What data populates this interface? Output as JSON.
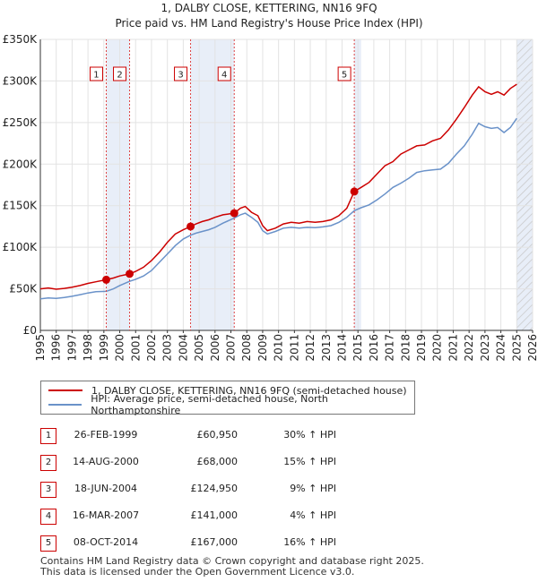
{
  "header": {
    "title": "1, DALBY CLOSE, KETTERING, NN16 9FQ",
    "subtitle": "Price paid vs. HM Land Registry's House Price Index (HPI)"
  },
  "chart_data": {
    "type": "line",
    "title": "1, DALBY CLOSE, KETTERING, NN16 9FQ",
    "subtitle": "Price paid vs. HM Land Registry's House Price Index (HPI)",
    "xlim": [
      1995,
      2026
    ],
    "ylim": [
      0,
      350000
    ],
    "x_ticks": [
      1995,
      1996,
      1997,
      1998,
      1999,
      2000,
      2001,
      2002,
      2003,
      2004,
      2005,
      2006,
      2007,
      2008,
      2009,
      2010,
      2011,
      2012,
      2013,
      2014,
      2015,
      2016,
      2017,
      2018,
      2019,
      2020,
      2021,
      2022,
      2023,
      2024,
      2025,
      2026
    ],
    "y_ticks": [
      {
        "value": 0,
        "label": "£0"
      },
      {
        "value": 50000,
        "label": "£50K"
      },
      {
        "value": 100000,
        "label": "£100K"
      },
      {
        "value": 150000,
        "label": "£150K"
      },
      {
        "value": 200000,
        "label": "£200K"
      },
      {
        "value": 250000,
        "label": "£250K"
      },
      {
        "value": 300000,
        "label": "£300K"
      },
      {
        "value": 350000,
        "label": "£350K"
      }
    ],
    "grid": true,
    "shaded_periods": [
      [
        1999.15,
        2000.62
      ],
      [
        2004.46,
        2007.21
      ],
      [
        2014.77,
        2015.2
      ],
      [
        2025.0,
        2026.0
      ]
    ],
    "series": [
      {
        "name": "1, DALBY CLOSE, KETTERING, NN16 9FQ (semi-detached house)",
        "color": "#cc0000",
        "points": [
          [
            1995.0,
            50000
          ],
          [
            1995.5,
            51000
          ],
          [
            1996.0,
            49500
          ],
          [
            1996.5,
            50500
          ],
          [
            1997.0,
            52000
          ],
          [
            1997.5,
            54000
          ],
          [
            1998.0,
            56500
          ],
          [
            1998.5,
            58500
          ],
          [
            1999.15,
            60950
          ],
          [
            1999.6,
            63000
          ],
          [
            2000.0,
            65500
          ],
          [
            2000.62,
            68000
          ],
          [
            2001.0,
            71000
          ],
          [
            2001.5,
            76000
          ],
          [
            2002.0,
            84000
          ],
          [
            2002.5,
            94000
          ],
          [
            2003.0,
            106000
          ],
          [
            2003.5,
            116000
          ],
          [
            2004.0,
            121000
          ],
          [
            2004.46,
            124950
          ],
          [
            2004.8,
            128000
          ],
          [
            2005.2,
            131000
          ],
          [
            2005.6,
            133000
          ],
          [
            2006.0,
            136000
          ],
          [
            2006.5,
            139000
          ],
          [
            2007.21,
            141000
          ],
          [
            2007.6,
            147000
          ],
          [
            2007.9,
            149000
          ],
          [
            2008.3,
            142000
          ],
          [
            2008.7,
            138000
          ],
          [
            2009.0,
            126000
          ],
          [
            2009.3,
            120000
          ],
          [
            2009.8,
            123000
          ],
          [
            2010.3,
            128000
          ],
          [
            2010.8,
            130000
          ],
          [
            2011.3,
            129000
          ],
          [
            2011.8,
            131000
          ],
          [
            2012.3,
            130000
          ],
          [
            2012.8,
            131000
          ],
          [
            2013.3,
            133000
          ],
          [
            2013.8,
            138000
          ],
          [
            2014.3,
            147000
          ],
          [
            2014.77,
            167000
          ],
          [
            2015.2,
            172000
          ],
          [
            2015.7,
            178000
          ],
          [
            2016.2,
            188000
          ],
          [
            2016.7,
            198000
          ],
          [
            2017.2,
            203000
          ],
          [
            2017.7,
            212000
          ],
          [
            2018.2,
            217000
          ],
          [
            2018.7,
            222000
          ],
          [
            2019.2,
            223000
          ],
          [
            2019.7,
            228000
          ],
          [
            2020.2,
            231000
          ],
          [
            2020.7,
            241000
          ],
          [
            2021.2,
            254000
          ],
          [
            2021.7,
            268000
          ],
          [
            2022.2,
            283000
          ],
          [
            2022.6,
            293000
          ],
          [
            2023.0,
            287000
          ],
          [
            2023.4,
            284000
          ],
          [
            2023.8,
            287000
          ],
          [
            2024.2,
            283000
          ],
          [
            2024.6,
            291000
          ],
          [
            2025.0,
            296000
          ]
        ]
      },
      {
        "name": "HPI: Average price, semi-detached house, North Northamptonshire",
        "color": "#6a92c9",
        "points": [
          [
            1995.0,
            38000
          ],
          [
            1995.5,
            39000
          ],
          [
            1996.0,
            38500
          ],
          [
            1996.5,
            39500
          ],
          [
            1997.0,
            41000
          ],
          [
            1997.5,
            43000
          ],
          [
            1998.0,
            45000
          ],
          [
            1998.5,
            46500
          ],
          [
            1999.15,
            47000
          ],
          [
            1999.6,
            50000
          ],
          [
            2000.0,
            54000
          ],
          [
            2000.62,
            59000
          ],
          [
            2001.0,
            61500
          ],
          [
            2001.5,
            65500
          ],
          [
            2002.0,
            72000
          ],
          [
            2002.5,
            82000
          ],
          [
            2003.0,
            92000
          ],
          [
            2003.5,
            102000
          ],
          [
            2004.0,
            110000
          ],
          [
            2004.46,
            114500
          ],
          [
            2004.8,
            117000
          ],
          [
            2005.2,
            119000
          ],
          [
            2005.6,
            121000
          ],
          [
            2006.0,
            124000
          ],
          [
            2006.5,
            129000
          ],
          [
            2007.21,
            135000
          ],
          [
            2007.6,
            139000
          ],
          [
            2007.9,
            141000
          ],
          [
            2008.3,
            136000
          ],
          [
            2008.7,
            130000
          ],
          [
            2009.0,
            120000
          ],
          [
            2009.3,
            116000
          ],
          [
            2009.8,
            119000
          ],
          [
            2010.3,
            123000
          ],
          [
            2010.8,
            124000
          ],
          [
            2011.3,
            123000
          ],
          [
            2011.8,
            124000
          ],
          [
            2012.3,
            123500
          ],
          [
            2012.8,
            124500
          ],
          [
            2013.3,
            126000
          ],
          [
            2013.8,
            130000
          ],
          [
            2014.3,
            136000
          ],
          [
            2014.77,
            144000
          ],
          [
            2015.2,
            147500
          ],
          [
            2015.7,
            151000
          ],
          [
            2016.2,
            157000
          ],
          [
            2016.7,
            164000
          ],
          [
            2017.2,
            172000
          ],
          [
            2017.7,
            177000
          ],
          [
            2018.2,
            183000
          ],
          [
            2018.7,
            190000
          ],
          [
            2019.2,
            192000
          ],
          [
            2019.7,
            193000
          ],
          [
            2020.2,
            194000
          ],
          [
            2020.7,
            201000
          ],
          [
            2021.2,
            212000
          ],
          [
            2021.7,
            222000
          ],
          [
            2022.2,
            236000
          ],
          [
            2022.6,
            249000
          ],
          [
            2023.0,
            245000
          ],
          [
            2023.4,
            243000
          ],
          [
            2023.8,
            244000
          ],
          [
            2024.2,
            238000
          ],
          [
            2024.6,
            244000
          ],
          [
            2025.0,
            255000
          ]
        ]
      }
    ],
    "transactions": [
      {
        "label": "1",
        "x": 1999.15,
        "y": 60950
      },
      {
        "label": "2",
        "x": 2000.62,
        "y": 68000
      },
      {
        "label": "3",
        "x": 2004.46,
        "y": 124950
      },
      {
        "label": "4",
        "x": 2007.21,
        "y": 141000
      },
      {
        "label": "5",
        "x": 2014.77,
        "y": 167000
      }
    ]
  },
  "legend": {
    "property": "1, DALBY CLOSE, KETTERING, NN16 9FQ (semi-detached house)",
    "hpi": "HPI: Average price, semi-detached house, North Northamptonshire"
  },
  "table": [
    {
      "num": "1",
      "date": "26-FEB-1999",
      "price": "£60,950",
      "hpi": "30% ↑ HPI"
    },
    {
      "num": "2",
      "date": "14-AUG-2000",
      "price": "£68,000",
      "hpi": "15% ↑ HPI"
    },
    {
      "num": "3",
      "date": "18-JUN-2004",
      "price": "£124,950",
      "hpi": "9% ↑ HPI"
    },
    {
      "num": "4",
      "date": "16-MAR-2007",
      "price": "£141,000",
      "hpi": "4% ↑ HPI"
    },
    {
      "num": "5",
      "date": "08-OCT-2014",
      "price": "£167,000",
      "hpi": "16% ↑ HPI"
    }
  ],
  "footer": {
    "line1": "Contains HM Land Registry data © Crown copyright and database right 2025.",
    "line2": "This data is licensed under the Open Government Licence v3.0."
  },
  "colors": {
    "property": "#cc0000",
    "hpi": "#6a92c9",
    "shade": "#e8eef8",
    "grid": "#e3e3e3"
  }
}
